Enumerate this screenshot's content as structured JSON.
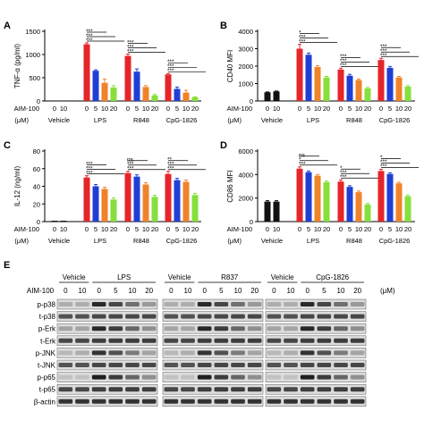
{
  "colors": {
    "vehicle": "#111111",
    "dose0": "#e5252a",
    "dose5": "#1f3fd4",
    "dose10": "#f0832a",
    "dose20": "#86df3c",
    "blot_band": "#222222",
    "blot_bg": "#dcdcdc"
  },
  "chart_data": [
    {
      "panel": "A",
      "type": "bar",
      "ylabel": "TNF-α (pg/ml)",
      "ylim": [
        0,
        1500
      ],
      "yticks": [
        0,
        500,
        1000,
        1500
      ],
      "ytick_labels": [
        "0",
        "500",
        "1000",
        "1500"
      ],
      "row_label": "AIM-100",
      "unit_label": "(μM)",
      "groups": [
        {
          "label": "Vehicle",
          "doses": [
            "0",
            "10"
          ],
          "values": [
            10,
            10
          ],
          "errors": [
            0,
            0
          ],
          "kind": "vehicle"
        },
        {
          "label": "LPS",
          "doses": [
            "0",
            "5",
            "10",
            "20"
          ],
          "values": [
            1220,
            650,
            390,
            290
          ],
          "errors": [
            30,
            20,
            80,
            40
          ],
          "kind": "treatment",
          "sig": [
            {
              "label": "***",
              "to": 1
            },
            {
              "label": "***",
              "to": 2
            },
            {
              "label": "***",
              "to": 3
            }
          ]
        },
        {
          "label": "R848",
          "doses": [
            "0",
            "5",
            "10",
            "20"
          ],
          "values": [
            970,
            630,
            300,
            120
          ],
          "errors": [
            40,
            60,
            30,
            20
          ],
          "kind": "treatment",
          "sig": [
            {
              "label": "***",
              "to": 1
            },
            {
              "label": "***",
              "to": 2
            },
            {
              "label": "***",
              "to": 3
            }
          ]
        },
        {
          "label": "CpG-1826",
          "doses": [
            "0",
            "5",
            "10",
            "20"
          ],
          "values": [
            570,
            260,
            180,
            80
          ],
          "errors": [
            20,
            40,
            50,
            10
          ],
          "kind": "treatment",
          "sig": [
            {
              "label": "***",
              "to": 1
            },
            {
              "label": "***",
              "to": 2
            },
            {
              "label": "***",
              "to": 3
            }
          ]
        }
      ]
    },
    {
      "panel": "B",
      "type": "bar",
      "ylabel": "CD40 MFI",
      "ylim": [
        0,
        4000
      ],
      "yticks": [
        0,
        1000,
        2000,
        3000,
        4000
      ],
      "ytick_labels": [
        "0",
        "1000",
        "2000",
        "3000",
        "4000"
      ],
      "row_label": "AIM-100",
      "unit_label": "(μM)",
      "groups": [
        {
          "label": "Vehicle",
          "doses": [
            "0",
            "10"
          ],
          "values": [
            500,
            550
          ],
          "errors": [
            20,
            20
          ],
          "kind": "vehicle"
        },
        {
          "label": "LPS",
          "doses": [
            "0",
            "5",
            "10",
            "20"
          ],
          "values": [
            3000,
            2650,
            1950,
            1350
          ],
          "errors": [
            250,
            100,
            80,
            60
          ],
          "kind": "treatment",
          "sig": [
            {
              "label": "*",
              "to": 1
            },
            {
              "label": "***",
              "to": 2
            },
            {
              "label": "***",
              "to": 3
            }
          ]
        },
        {
          "label": "R848",
          "doses": [
            "0",
            "5",
            "10",
            "20"
          ],
          "values": [
            1800,
            1450,
            1200,
            720
          ],
          "errors": [
            80,
            80,
            60,
            60
          ],
          "kind": "treatment",
          "sig": [
            {
              "label": "***",
              "to": 1
            },
            {
              "label": "***",
              "to": 2
            },
            {
              "label": "***",
              "to": 3
            }
          ]
        },
        {
          "label": "CpG-1826",
          "doses": [
            "0",
            "5",
            "10",
            "20"
          ],
          "values": [
            2350,
            1900,
            1350,
            820
          ],
          "errors": [
            100,
            80,
            60,
            60
          ],
          "kind": "treatment",
          "sig": [
            {
              "label": "***",
              "to": 1
            },
            {
              "label": "***",
              "to": 2
            },
            {
              "label": "***",
              "to": 3
            }
          ]
        }
      ]
    },
    {
      "panel": "C",
      "type": "bar",
      "ylabel": "IL-12 (ng/ml)",
      "ylim": [
        0,
        80
      ],
      "yticks": [
        0,
        20,
        40,
        60,
        80
      ],
      "ytick_labels": [
        "0",
        "20",
        "40",
        "60",
        "80"
      ],
      "row_label": "AIM-100",
      "unit_label": "(μM)",
      "groups": [
        {
          "label": "Vehicle",
          "doses": [
            "0",
            "10"
          ],
          "values": [
            1,
            1
          ],
          "errors": [
            0,
            0
          ],
          "kind": "vehicle"
        },
        {
          "label": "LPS",
          "doses": [
            "0",
            "5",
            "10",
            "20"
          ],
          "values": [
            50,
            40,
            37,
            25
          ],
          "errors": [
            2,
            2,
            2,
            2
          ],
          "kind": "treatment",
          "sig": [
            {
              "label": "***",
              "to": 1
            },
            {
              "label": "***",
              "to": 2
            },
            {
              "label": "***",
              "to": 3
            }
          ]
        },
        {
          "label": "R848",
          "doses": [
            "0",
            "5",
            "10",
            "20"
          ],
          "values": [
            55,
            51,
            42,
            28
          ],
          "errors": [
            2,
            2,
            2,
            2
          ],
          "kind": "treatment",
          "sig": [
            {
              "label": "ns",
              "to": 1
            },
            {
              "label": "***",
              "to": 2
            },
            {
              "label": "***",
              "to": 3
            }
          ]
        },
        {
          "label": "CpG-1826",
          "doses": [
            "0",
            "5",
            "10",
            "20"
          ],
          "values": [
            54,
            47,
            45,
            30
          ],
          "errors": [
            3,
            2,
            2,
            2
          ],
          "kind": "treatment",
          "sig": [
            {
              "label": "**",
              "to": 1
            },
            {
              "label": "***",
              "to": 2
            },
            {
              "label": "***",
              "to": 3
            }
          ]
        }
      ]
    },
    {
      "panel": "D",
      "type": "bar",
      "ylabel": "CD86 MFI",
      "ylim": [
        0,
        6000
      ],
      "yticks": [
        0,
        2000,
        4000,
        6000
      ],
      "ytick_labels": [
        "0",
        "2000",
        "4000",
        "6000"
      ],
      "row_label": "AIM-100",
      "unit_label": "(μM)",
      "groups": [
        {
          "label": "Vehicle",
          "doses": [
            "0",
            "10"
          ],
          "values": [
            1700,
            1700
          ],
          "errors": [
            80,
            80
          ],
          "kind": "vehicle"
        },
        {
          "label": "LPS",
          "doses": [
            "0",
            "5",
            "10",
            "20"
          ],
          "values": [
            4500,
            4200,
            3900,
            3350
          ],
          "errors": [
            150,
            100,
            100,
            100
          ],
          "kind": "treatment",
          "sig": [
            {
              "label": "ns",
              "to": 1
            },
            {
              "label": "*",
              "to": 2
            },
            {
              "label": "***",
              "to": 3
            }
          ]
        },
        {
          "label": "R848",
          "doses": [
            "0",
            "5",
            "10",
            "20"
          ],
          "values": [
            3400,
            2950,
            2500,
            1450
          ],
          "errors": [
            150,
            100,
            100,
            100
          ],
          "kind": "treatment",
          "sig": [
            {
              "label": "*",
              "to": 1
            },
            {
              "label": "***",
              "to": 2
            },
            {
              "label": "***",
              "to": 3
            }
          ]
        },
        {
          "label": "CpG-1826",
          "doses": [
            "0",
            "5",
            "10",
            "20"
          ],
          "values": [
            4300,
            4050,
            3250,
            2150
          ],
          "errors": [
            150,
            100,
            100,
            100
          ],
          "kind": "treatment",
          "sig": [
            {
              "label": "*",
              "to": 1
            },
            {
              "label": "***",
              "to": 2
            },
            {
              "label": "***",
              "to": 3
            }
          ]
        }
      ]
    }
  ],
  "blot": {
    "panel": "E",
    "row_label": "AIM-100",
    "unit_label": "(μM)",
    "blocks": [
      {
        "vehicle_label": "Vehicle",
        "treatment_label": "LPS",
        "doses": [
          "0",
          "10",
          "0",
          "5",
          "10",
          "20"
        ]
      },
      {
        "vehicle_label": "Vehicle",
        "treatment_label": "R837",
        "doses": [
          "0",
          "10",
          "0",
          "5",
          "10",
          "20"
        ]
      },
      {
        "vehicle_label": "Vehicle",
        "treatment_label": "CpG-1826",
        "doses": [
          "0",
          "10",
          "0",
          "5",
          "10",
          "20"
        ]
      }
    ],
    "rows": [
      "p-p38",
      "t-p38",
      "p-Erk",
      "t-Erk",
      "p-JNK",
      "t-JNK",
      "p-p65",
      "t-p65",
      "β-actin"
    ]
  }
}
